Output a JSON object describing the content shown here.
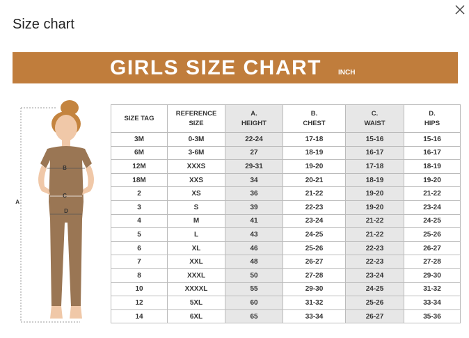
{
  "dialog": {
    "title": "Size chart"
  },
  "banner": {
    "title": "GIRLS SIZE CHART",
    "unit": "INCH"
  },
  "figure": {
    "labels": [
      "A",
      "B",
      "C",
      "D"
    ]
  },
  "table": {
    "header": [
      [
        "SIZE TAG"
      ],
      [
        "REFERENCE",
        "SIZE"
      ],
      [
        "A.",
        "HEIGHT"
      ],
      [
        "B.",
        "CHEST"
      ],
      [
        "C.",
        "WAIST"
      ],
      [
        "D.",
        "HIPS"
      ]
    ],
    "rows": [
      [
        "3M",
        "0-3M",
        "22-24",
        "17-18",
        "15-16",
        "15-16"
      ],
      [
        "6M",
        "3-6M",
        "27",
        "18-19",
        "16-17",
        "16-17"
      ],
      [
        "12M",
        "XXXS",
        "29-31",
        "19-20",
        "17-18",
        "18-19"
      ],
      [
        "18M",
        "XXS",
        "34",
        "20-21",
        "18-19",
        "19-20"
      ],
      [
        "2",
        "XS",
        "36",
        "21-22",
        "19-20",
        "21-22"
      ],
      [
        "3",
        "S",
        "39",
        "22-23",
        "19-20",
        "23-24"
      ],
      [
        "4",
        "M",
        "41",
        "23-24",
        "21-22",
        "24-25"
      ],
      [
        "5",
        "L",
        "43",
        "24-25",
        "21-22",
        "25-26"
      ],
      [
        "6",
        "XL",
        "46",
        "25-26",
        "22-23",
        "26-27"
      ],
      [
        "7",
        "XXL",
        "48",
        "26-27",
        "22-23",
        "27-28"
      ],
      [
        "8",
        "XXXL",
        "50",
        "27-28",
        "23-24",
        "29-30"
      ],
      [
        "10",
        "XXXXL",
        "55",
        "29-30",
        "24-25",
        "31-32"
      ],
      [
        "12",
        "5XL",
        "60",
        "31-32",
        "25-26",
        "33-34"
      ],
      [
        "14",
        "6XL",
        "65",
        "33-34",
        "26-27",
        "35-36"
      ]
    ]
  }
}
